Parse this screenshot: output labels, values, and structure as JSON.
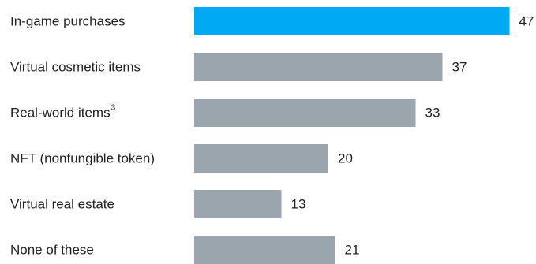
{
  "chart_data": {
    "type": "bar",
    "orientation": "horizontal",
    "categories": [
      {
        "label": "In-game purchases",
        "sup": ""
      },
      {
        "label": "Virtual cosmetic items",
        "sup": ""
      },
      {
        "label": "Real-world items",
        "sup": "3"
      },
      {
        "label": "NFT (nonfungible token)",
        "sup": ""
      },
      {
        "label": "Virtual real estate",
        "sup": ""
      },
      {
        "label": "None of these",
        "sup": ""
      }
    ],
    "values": [
      47,
      37,
      33,
      20,
      13,
      21
    ],
    "highlight_index": 0,
    "colors": {
      "highlight": "#00a9f4",
      "default": "#9ba5ad",
      "text": "#222222"
    }
  }
}
